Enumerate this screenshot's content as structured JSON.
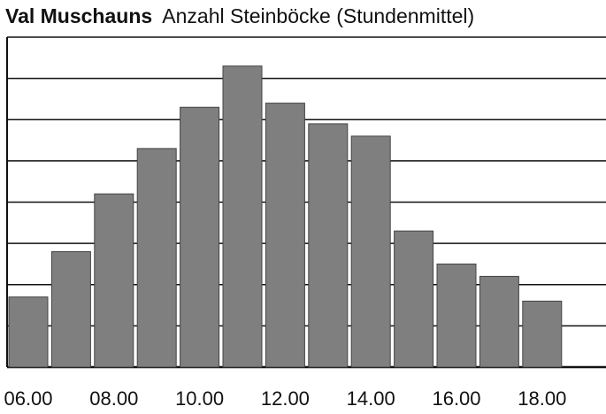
{
  "chart_data": {
    "type": "bar",
    "title": "Val Muschauns",
    "subtitle": "Anzahl Steinböcke (Stundenmittel)",
    "categories": [
      "06.00",
      null,
      "08.00",
      null,
      "10.00",
      null,
      "12.00",
      null,
      "14.00",
      null,
      "16.00",
      null,
      "18.00"
    ],
    "values": [
      1.7,
      2.8,
      4.2,
      5.3,
      6.3,
      7.3,
      6.4,
      5.9,
      5.6,
      3.3,
      2.5,
      2.2,
      1.6
    ],
    "color": "#7f7f7f",
    "ylim": [
      0,
      8
    ],
    "yticks": [
      0,
      1,
      2,
      3,
      4,
      5,
      6,
      7,
      8
    ],
    "grid": true
  }
}
